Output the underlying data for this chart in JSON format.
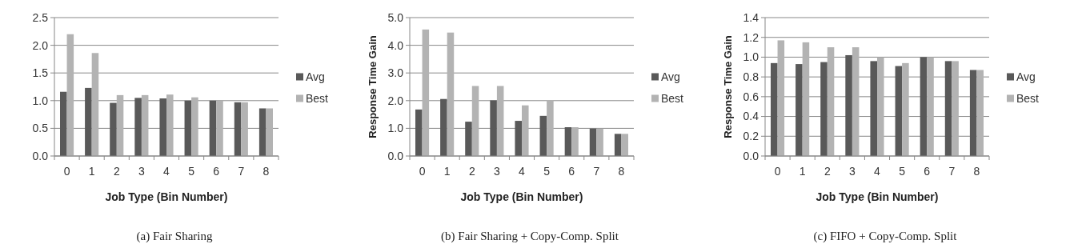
{
  "chart_data": [
    {
      "type": "bar",
      "title": "(a) Fair Sharing",
      "xlabel": "Job Type (Bin Number)",
      "categories": [
        "0",
        "1",
        "2",
        "3",
        "4",
        "5",
        "6",
        "7",
        "8"
      ],
      "series": [
        {
          "name": "Avg",
          "color": "#595959",
          "values": [
            1.16,
            1.23,
            0.96,
            1.05,
            1.04,
            1.0,
            1.0,
            0.97,
            0.86
          ]
        },
        {
          "name": "Best",
          "color": "#b3b3b3",
          "values": [
            2.2,
            1.86,
            1.1,
            1.1,
            1.11,
            1.06,
            1.0,
            0.97,
            0.86
          ]
        }
      ],
      "ylim": [
        0,
        2.5
      ],
      "yticks": [
        {
          "value": 0,
          "label": "0.0"
        },
        {
          "value": 0.5,
          "label": "0.5"
        },
        {
          "value": 1,
          "label": "1.0"
        },
        {
          "value": 1.5,
          "label": "1.5"
        },
        {
          "value": 2,
          "label": "2.0"
        },
        {
          "value": 2.5,
          "label": "2.5"
        }
      ],
      "grid": "y",
      "legend": "right"
    },
    {
      "type": "bar",
      "title": "(b) Fair Sharing + Copy-Comp. Split",
      "xlabel": "Job Type (Bin Number)",
      "ylabel": "Response Time Gain",
      "categories": [
        "0",
        "1",
        "2",
        "3",
        "4",
        "5",
        "6",
        "7",
        "8"
      ],
      "series": [
        {
          "name": "Avg",
          "color": "#595959",
          "values": [
            1.68,
            2.06,
            1.24,
            2.01,
            1.27,
            1.45,
            1.04,
            0.99,
            0.8
          ]
        },
        {
          "name": "Best",
          "color": "#b3b3b3",
          "values": [
            4.57,
            4.46,
            2.53,
            2.53,
            1.83,
            2.02,
            1.04,
            0.99,
            0.8
          ]
        }
      ],
      "ylim": [
        0,
        5
      ],
      "yticks": [
        {
          "value": 0,
          "label": "0.0"
        },
        {
          "value": 1,
          "label": "1.0"
        },
        {
          "value": 2,
          "label": "2.0"
        },
        {
          "value": 3,
          "label": "3.0"
        },
        {
          "value": 4,
          "label": "4.0"
        },
        {
          "value": 5,
          "label": "5.0"
        }
      ],
      "grid": "y",
      "legend": "right"
    },
    {
      "type": "bar",
      "title": "(c) FIFO + Copy-Comp. Split",
      "xlabel": "Job Type (Bin Number)",
      "ylabel": "Response Time Gain",
      "categories": [
        "0",
        "1",
        "2",
        "3",
        "4",
        "5",
        "6",
        "7",
        "8"
      ],
      "series": [
        {
          "name": "Avg",
          "color": "#595959",
          "values": [
            0.94,
            0.93,
            0.95,
            1.02,
            0.96,
            0.91,
            1.0,
            0.96,
            0.87
          ]
        },
        {
          "name": "Best",
          "color": "#b3b3b3",
          "values": [
            1.17,
            1.15,
            1.1,
            1.1,
            1.0,
            0.94,
            1.0,
            0.96,
            0.87
          ]
        }
      ],
      "ylim": [
        0,
        1.4
      ],
      "yticks": [
        {
          "value": 0,
          "label": "0.0"
        },
        {
          "value": 0.2,
          "label": "0.2"
        },
        {
          "value": 0.4,
          "label": "0.4"
        },
        {
          "value": 0.6,
          "label": "0.6"
        },
        {
          "value": 0.8,
          "label": "0.8"
        },
        {
          "value": 1,
          "label": "1.0"
        },
        {
          "value": 1.2,
          "label": "1.2"
        },
        {
          "value": 1.4,
          "label": "1.4"
        }
      ],
      "grid": "y",
      "legend": "right"
    }
  ]
}
